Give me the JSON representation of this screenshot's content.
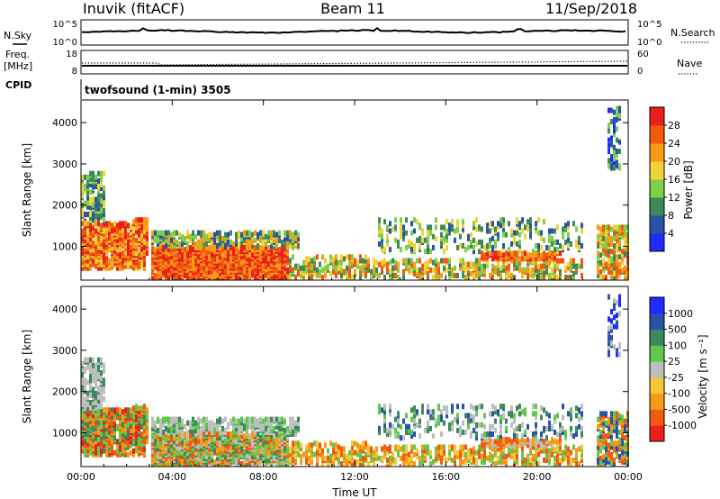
{
  "header": {
    "station": "Inuvik (fitACF)",
    "beam": "Beam 11",
    "date": "11/Sep/2018"
  },
  "nsky_panel": {
    "left_label": "N.Sky",
    "right_label": "N.Search",
    "left_ticks": [
      "10^5",
      "10^0"
    ],
    "right_ticks": [
      "10^5",
      "10^0"
    ]
  },
  "freq_panel": {
    "left_label_1": "Freq.",
    "left_label_2": "[MHz]",
    "right_label": "Nave",
    "left_ticks": [
      "18",
      "8"
    ],
    "right_ticks": [
      "60",
      "0"
    ]
  },
  "cpid": {
    "label": "CPID",
    "text": "twofsound (1-min) 3505"
  },
  "colors": {
    "power": [
      "#1f2bff",
      "#2a52a8",
      "#3c8a5c",
      "#7ed046",
      "#f0d23a",
      "#f79a16",
      "#f25a0f",
      "#ea1f1b"
    ],
    "velocity": [
      "#ea1f1b",
      "#f25a0f",
      "#f79a16",
      "#f5c73a",
      "#bebebe",
      "#5ec94a",
      "#3c8a5c",
      "#2a52a8",
      "#1f2bff"
    ]
  },
  "chart_data": [
    {
      "type": "heatmap",
      "quantity": "Power",
      "ylabel": "Slant Range [km]",
      "colorbar_label": "Power [dB]",
      "x_ticks": [
        "00:00",
        "04:00",
        "08:00",
        "12:00",
        "16:00",
        "20:00",
        "00:00"
      ],
      "y_ticks": [
        1000,
        2000,
        3000,
        4000
      ],
      "ylim": [
        180,
        4550
      ],
      "colorbar_ticks": [
        "4",
        "8",
        "12",
        "16",
        "20",
        "24",
        "28"
      ],
      "colorbar_range": [
        0,
        32
      ]
    },
    {
      "type": "heatmap",
      "quantity": "Velocity",
      "ylabel": "Slant Range [km]",
      "xlabel": "Time UT",
      "colorbar_label": "Velocity [m s⁻¹]",
      "x_ticks": [
        "00:00",
        "04:00",
        "08:00",
        "12:00",
        "16:00",
        "20:00",
        "00:00"
      ],
      "y_ticks": [
        1000,
        2000,
        3000,
        4000
      ],
      "ylim": [
        180,
        4550
      ],
      "colorbar_ticks": [
        "1000",
        "500",
        "100",
        "25",
        "-25",
        "-100",
        "-500",
        "-1000"
      ]
    }
  ]
}
